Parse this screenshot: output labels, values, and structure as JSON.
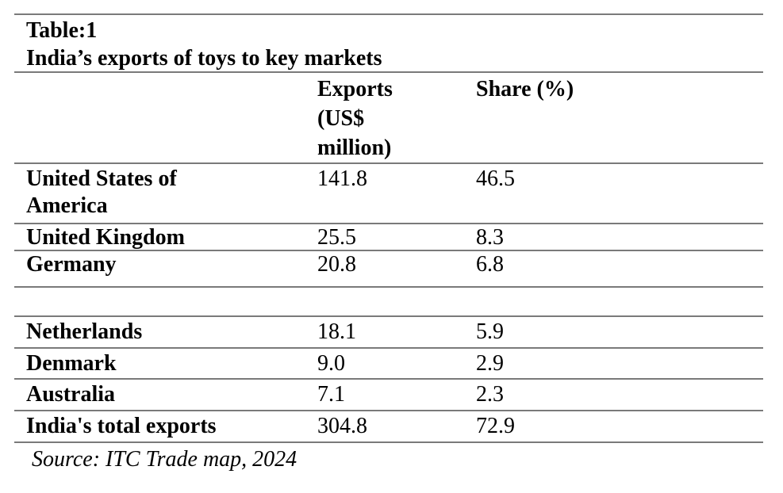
{
  "table": {
    "title_line1": "Table:1",
    "title_line2": "India’s exports of toys to key markets",
    "columns": {
      "market": "",
      "exports": "Exports\n(US$\nmillion)",
      "share": "Share (%)"
    },
    "rows": [
      {
        "market": "United States of\nAmerica",
        "exports": "141.8",
        "share": "46.5"
      },
      {
        "market": "United Kingdom",
        "exports": "25.5",
        "share": "8.3"
      },
      {
        "market": "Germany",
        "exports": "20.8",
        "share": "6.8"
      },
      {
        "market": "",
        "exports": "",
        "share": ""
      },
      {
        "market": "Netherlands",
        "exports": "18.1",
        "share": "5.9"
      },
      {
        "market": "Denmark",
        "exports": "9.0",
        "share": "2.9"
      },
      {
        "market": "Australia",
        "exports": "7.1",
        "share": "2.3"
      },
      {
        "market": "India's total exports",
        "exports": "304.8",
        "share": "72.9"
      }
    ],
    "source": "Source: ITC Trade map, 2024"
  },
  "colors": {
    "rule": "#7a7a7a",
    "text": "#000000",
    "background": "#ffffff"
  }
}
